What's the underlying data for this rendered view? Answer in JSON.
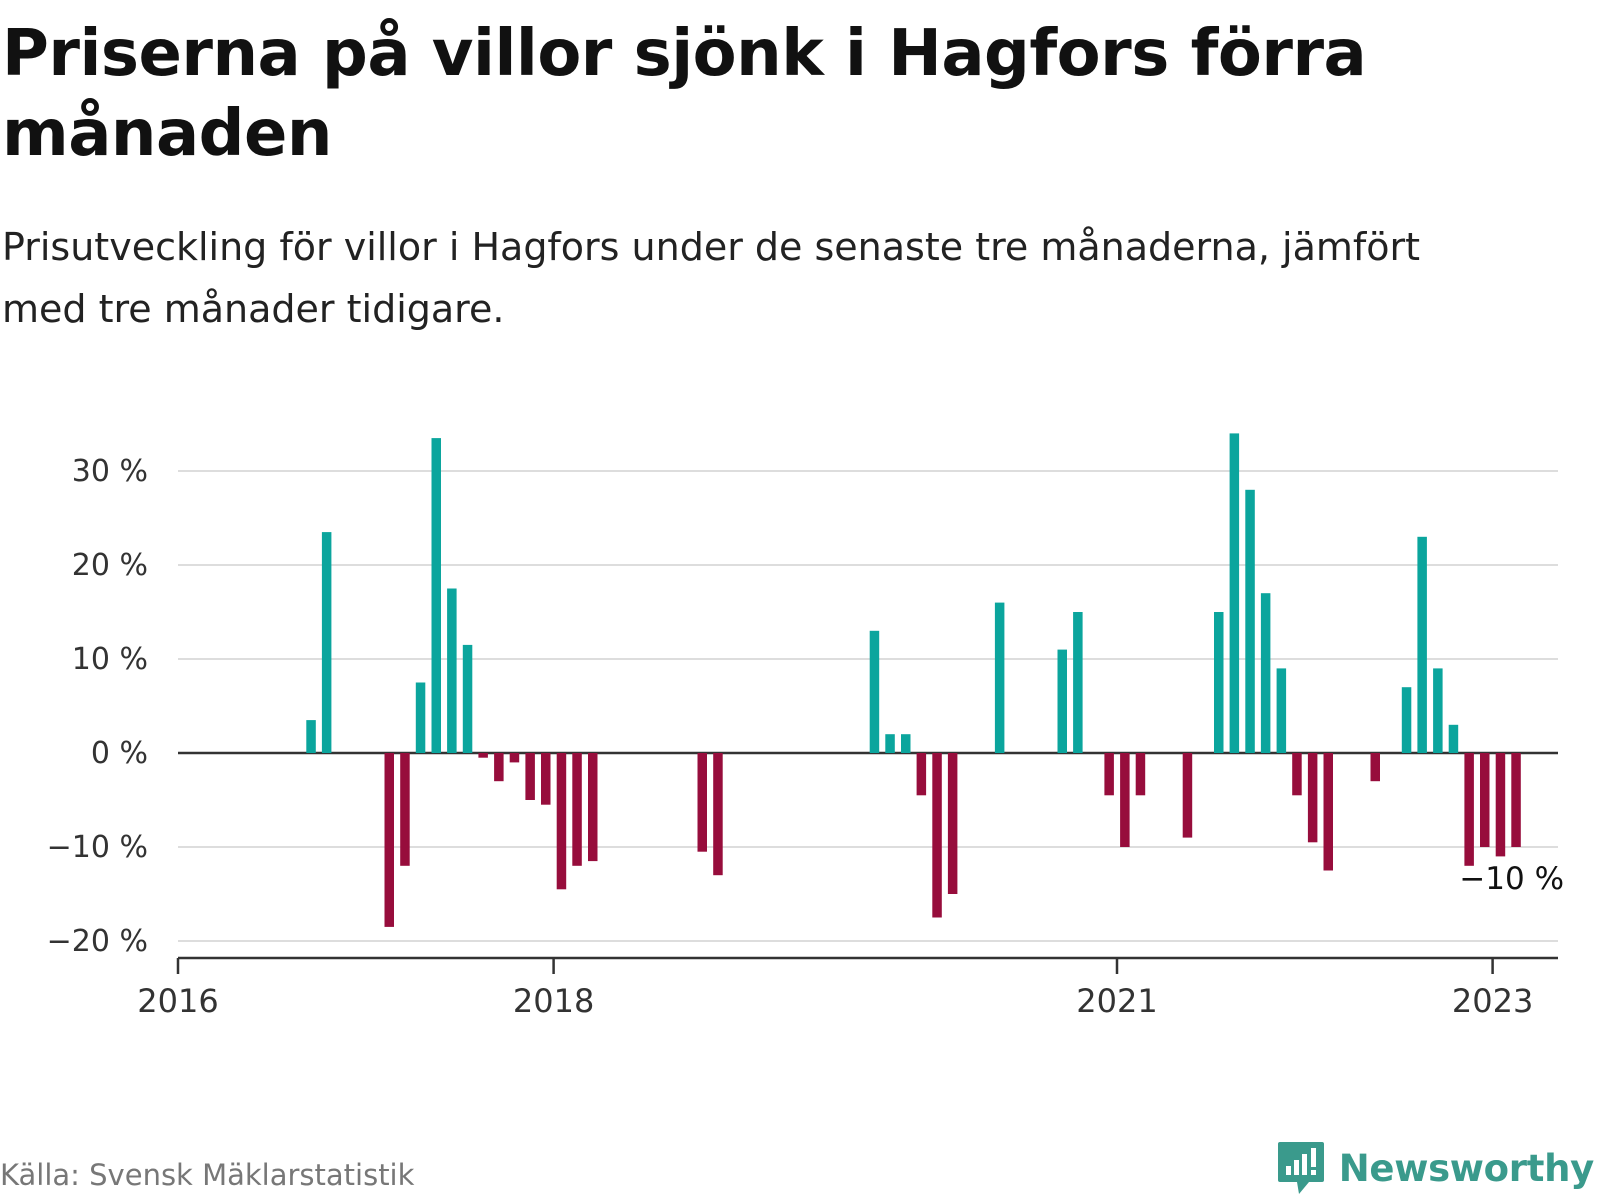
{
  "title": "Priserna på villor sjönk i Hagfors förra månaden",
  "subtitle": "Prisutveckling för villor i Hagfors under de senaste tre månaderna, jämfört med tre månader tidigare.",
  "source": "Källa: Svensk Mäklarstatistik",
  "brand": {
    "name": "Newsworthy",
    "icon": "newsworthy-logo-icon"
  },
  "colors": {
    "positive": "#0ba59d",
    "negative": "#970d3c",
    "brand": "#3a9a8c"
  },
  "chart_data": {
    "type": "bar",
    "x_unit": "month",
    "xlim": [
      "2016-01",
      "2023-04"
    ],
    "ylim": [
      -20,
      35
    ],
    "yticks": [
      30,
      20,
      10,
      0,
      -10,
      -20
    ],
    "ytick_labels": [
      "30 %",
      "20 %",
      "10 %",
      "0 %",
      "−10 %",
      "−20 %"
    ],
    "xticks": [
      "2016-01",
      "2018-01",
      "2021-01",
      "2023-01"
    ],
    "xtick_labels": [
      "2016",
      "2018",
      "2021",
      "2023"
    ],
    "grid": true,
    "value_unit": "%",
    "last_label": "−10 %",
    "bars": [
      {
        "x": "2016-09",
        "y": 3.5
      },
      {
        "x": "2016-10",
        "y": 23.5
      },
      {
        "x": "2017-02",
        "y": -18.5
      },
      {
        "x": "2017-03",
        "y": -12
      },
      {
        "x": "2017-04",
        "y": 7.5
      },
      {
        "x": "2017-05",
        "y": 33.5
      },
      {
        "x": "2017-06",
        "y": 17.5
      },
      {
        "x": "2017-07",
        "y": 11.5
      },
      {
        "x": "2017-08",
        "y": -0.5
      },
      {
        "x": "2017-09",
        "y": -3
      },
      {
        "x": "2017-10",
        "y": -1
      },
      {
        "x": "2017-11",
        "y": -5
      },
      {
        "x": "2017-12",
        "y": -5.5
      },
      {
        "x": "2018-01",
        "y": -14.5
      },
      {
        "x": "2018-02",
        "y": -12
      },
      {
        "x": "2018-03",
        "y": -11.5
      },
      {
        "x": "2018-10",
        "y": -10.5
      },
      {
        "x": "2018-11",
        "y": -13
      },
      {
        "x": "2019-09",
        "y": 13
      },
      {
        "x": "2019-10",
        "y": 2
      },
      {
        "x": "2019-11",
        "y": 2
      },
      {
        "x": "2019-12",
        "y": -4.5
      },
      {
        "x": "2020-01",
        "y": -17.5
      },
      {
        "x": "2020-02",
        "y": -15
      },
      {
        "x": "2020-05",
        "y": 16
      },
      {
        "x": "2020-09",
        "y": 11
      },
      {
        "x": "2020-10",
        "y": 15
      },
      {
        "x": "2020-12",
        "y": -4.5
      },
      {
        "x": "2021-01",
        "y": -10
      },
      {
        "x": "2021-02",
        "y": -4.5
      },
      {
        "x": "2021-05",
        "y": -9
      },
      {
        "x": "2021-07",
        "y": 15
      },
      {
        "x": "2021-08",
        "y": 34
      },
      {
        "x": "2021-09",
        "y": 28
      },
      {
        "x": "2021-10",
        "y": 17
      },
      {
        "x": "2021-11",
        "y": 9
      },
      {
        "x": "2021-12",
        "y": -4.5
      },
      {
        "x": "2022-01",
        "y": -9.5
      },
      {
        "x": "2022-02",
        "y": -12.5
      },
      {
        "x": "2022-05",
        "y": -3
      },
      {
        "x": "2022-07",
        "y": 7
      },
      {
        "x": "2022-08",
        "y": 23
      },
      {
        "x": "2022-09",
        "y": 9
      },
      {
        "x": "2022-10",
        "y": 3
      },
      {
        "x": "2022-11",
        "y": -12
      },
      {
        "x": "2022-12",
        "y": -10
      },
      {
        "x": "2023-01",
        "y": -11
      },
      {
        "x": "2023-02",
        "y": -10
      }
    ]
  }
}
